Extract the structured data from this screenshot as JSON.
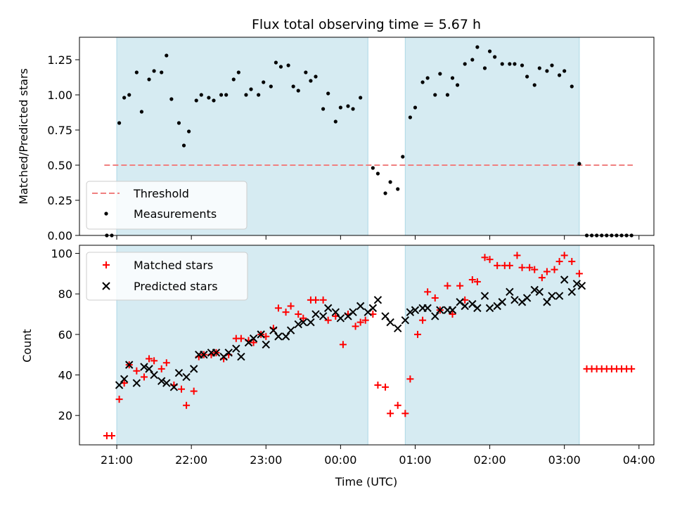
{
  "chart_data": [
    {
      "type": "scatter",
      "title": "Flux total observing time = 5.67 h",
      "ylabel": "Matched/Predicted stars",
      "xlabel": "",
      "ylim": [
        0,
        1.41
      ],
      "yticks": [
        "0.00",
        "0.25",
        "0.50",
        "0.75",
        "1.00",
        "1.25"
      ],
      "shaded_intervals": [
        [
          "21:00",
          "00:22"
        ],
        [
          "00:52",
          "03:12"
        ]
      ],
      "threshold": {
        "name": "Threshold",
        "value": 0.5,
        "x_range": [
          "20:50",
          "03:55"
        ],
        "color": "#f08080"
      },
      "legend": {
        "placement": "lower-left",
        "entries": [
          "Threshold",
          "Measurements"
        ]
      },
      "series": [
        {
          "name": "Measurements",
          "color": "#000000",
          "points": [
            [
              "20:52",
              0.0
            ],
            [
              "20:56",
              0.0
            ],
            [
              "21:02",
              0.8
            ],
            [
              "21:06",
              0.98
            ],
            [
              "21:10",
              1.0
            ],
            [
              "21:16",
              1.16
            ],
            [
              "21:20",
              0.88
            ],
            [
              "21:26",
              1.11
            ],
            [
              "21:30",
              1.17
            ],
            [
              "21:36",
              1.16
            ],
            [
              "21:40",
              1.28
            ],
            [
              "21:44",
              0.97
            ],
            [
              "21:50",
              0.8
            ],
            [
              "21:54",
              0.64
            ],
            [
              "21:58",
              0.74
            ],
            [
              "22:04",
              0.96
            ],
            [
              "22:08",
              1.0
            ],
            [
              "22:14",
              0.98
            ],
            [
              "22:18",
              0.96
            ],
            [
              "22:24",
              1.0
            ],
            [
              "22:28",
              1.0
            ],
            [
              "22:34",
              1.11
            ],
            [
              "22:38",
              1.16
            ],
            [
              "22:44",
              1.0
            ],
            [
              "22:48",
              1.04
            ],
            [
              "22:54",
              1.0
            ],
            [
              "22:58",
              1.09
            ],
            [
              "23:04",
              1.06
            ],
            [
              "23:08",
              1.23
            ],
            [
              "23:12",
              1.2
            ],
            [
              "23:18",
              1.21
            ],
            [
              "23:22",
              1.06
            ],
            [
              "23:26",
              1.03
            ],
            [
              "23:32",
              1.16
            ],
            [
              "23:36",
              1.1
            ],
            [
              "23:40",
              1.13
            ],
            [
              "23:46",
              0.9
            ],
            [
              "23:50",
              1.01
            ],
            [
              "23:56",
              0.81
            ],
            [
              "24:00",
              0.91
            ],
            [
              "24:06",
              0.92
            ],
            [
              "24:10",
              0.9
            ],
            [
              "24:16",
              0.98
            ],
            [
              "24:26",
              0.48
            ],
            [
              "24:30",
              0.44
            ],
            [
              "24:36",
              0.3
            ],
            [
              "24:40",
              0.38
            ],
            [
              "24:46",
              0.33
            ],
            [
              "24:50",
              0.56
            ],
            [
              "24:56",
              0.84
            ],
            [
              "25:00",
              0.91
            ],
            [
              "25:06",
              1.09
            ],
            [
              "25:10",
              1.12
            ],
            [
              "25:16",
              1.0
            ],
            [
              "25:20",
              1.15
            ],
            [
              "25:26",
              1.0
            ],
            [
              "25:30",
              1.12
            ],
            [
              "25:34",
              1.07
            ],
            [
              "25:40",
              1.22
            ],
            [
              "25:46",
              1.25
            ],
            [
              "25:50",
              1.34
            ],
            [
              "25:56",
              1.19
            ],
            [
              "26:00",
              1.31
            ],
            [
              "26:04",
              1.27
            ],
            [
              "26:10",
              1.22
            ],
            [
              "26:16",
              1.22
            ],
            [
              "26:20",
              1.22
            ],
            [
              "26:26",
              1.21
            ],
            [
              "26:30",
              1.13
            ],
            [
              "26:36",
              1.07
            ],
            [
              "26:40",
              1.19
            ],
            [
              "26:46",
              1.17
            ],
            [
              "26:50",
              1.21
            ],
            [
              "26:56",
              1.14
            ],
            [
              "27:00",
              1.17
            ],
            [
              "27:06",
              1.06
            ],
            [
              "27:12",
              0.51
            ],
            [
              "27:18",
              0.0
            ],
            [
              "27:22",
              0.0
            ],
            [
              "27:26",
              0.0
            ],
            [
              "27:30",
              0.0
            ],
            [
              "27:34",
              0.0
            ],
            [
              "27:38",
              0.0
            ],
            [
              "27:42",
              0.0
            ],
            [
              "27:46",
              0.0
            ],
            [
              "27:50",
              0.0
            ],
            [
              "27:54",
              0.0
            ]
          ]
        }
      ]
    },
    {
      "type": "scatter",
      "title": "",
      "xlabel": "Time (UTC)",
      "ylabel": "Count",
      "ylim": [
        5.5,
        104
      ],
      "yticks": [
        "20",
        "40",
        "60",
        "80",
        "100"
      ],
      "xlim": [
        "20:30",
        "04:12"
      ],
      "xticks": [
        "21:00",
        "22:00",
        "23:00",
        "00:00",
        "01:00",
        "02:00",
        "03:00",
        "04:00"
      ],
      "shaded_intervals": [
        [
          "21:00",
          "00:22"
        ],
        [
          "00:52",
          "03:12"
        ]
      ],
      "legend": {
        "placement": "upper-left",
        "entries": [
          "Matched stars",
          "Predicted stars"
        ]
      },
      "series": [
        {
          "name": "Matched stars",
          "color": "#ff0000",
          "marker": "+",
          "points": [
            [
              "20:52",
              10
            ],
            [
              "20:56",
              10
            ],
            [
              "21:02",
              28
            ],
            [
              "21:06",
              36
            ],
            [
              "21:10",
              45
            ],
            [
              "21:16",
              42
            ],
            [
              "21:22",
              39
            ],
            [
              "21:26",
              48
            ],
            [
              "21:30",
              47
            ],
            [
              "21:36",
              43
            ],
            [
              "21:40",
              46
            ],
            [
              "21:46",
              35
            ],
            [
              "21:52",
              33
            ],
            [
              "21:56",
              25
            ],
            [
              "22:02",
              32
            ],
            [
              "22:06",
              49
            ],
            [
              "22:10",
              50
            ],
            [
              "22:16",
              50
            ],
            [
              "22:20",
              51
            ],
            [
              "22:26",
              48
            ],
            [
              "22:30",
              50
            ],
            [
              "22:36",
              58
            ],
            [
              "22:40",
              58
            ],
            [
              "22:46",
              57
            ],
            [
              "22:50",
              56
            ],
            [
              "22:56",
              60
            ],
            [
              "23:00",
              59
            ],
            [
              "23:06",
              63
            ],
            [
              "23:10",
              73
            ],
            [
              "23:16",
              71
            ],
            [
              "23:20",
              74
            ],
            [
              "23:26",
              70
            ],
            [
              "23:30",
              68
            ],
            [
              "23:36",
              77
            ],
            [
              "23:40",
              77
            ],
            [
              "23:46",
              77
            ],
            [
              "23:50",
              67
            ],
            [
              "23:56",
              69
            ],
            [
              "24:02",
              55
            ],
            [
              "24:06",
              70
            ],
            [
              "24:12",
              64
            ],
            [
              "24:16",
              66
            ],
            [
              "24:20",
              67
            ],
            [
              "24:26",
              70
            ],
            [
              "24:30",
              35
            ],
            [
              "24:36",
              34
            ],
            [
              "24:40",
              21
            ],
            [
              "24:46",
              25
            ],
            [
              "24:52",
              21
            ],
            [
              "24:56",
              38
            ],
            [
              "25:02",
              60
            ],
            [
              "25:06",
              67
            ],
            [
              "25:10",
              81
            ],
            [
              "25:16",
              78
            ],
            [
              "25:20",
              72
            ],
            [
              "25:26",
              84
            ],
            [
              "25:30",
              70
            ],
            [
              "25:36",
              84
            ],
            [
              "25:40",
              77
            ],
            [
              "25:46",
              87
            ],
            [
              "25:50",
              86
            ],
            [
              "25:56",
              98
            ],
            [
              "26:00",
              97
            ],
            [
              "26:06",
              94
            ],
            [
              "26:12",
              94
            ],
            [
              "26:16",
              94
            ],
            [
              "26:22",
              99
            ],
            [
              "26:26",
              93
            ],
            [
              "26:32",
              93
            ],
            [
              "26:36",
              92
            ],
            [
              "26:42",
              88
            ],
            [
              "26:46",
              91
            ],
            [
              "26:52",
              92
            ],
            [
              "26:56",
              96
            ],
            [
              "27:00",
              99
            ],
            [
              "27:06",
              96
            ],
            [
              "27:12",
              90
            ],
            [
              "27:18",
              43
            ],
            [
              "27:22",
              43
            ],
            [
              "27:26",
              43
            ],
            [
              "27:30",
              43
            ],
            [
              "27:34",
              43
            ],
            [
              "27:38",
              43
            ],
            [
              "27:42",
              43
            ],
            [
              "27:46",
              43
            ],
            [
              "27:50",
              43
            ],
            [
              "27:54",
              43
            ]
          ]
        },
        {
          "name": "Predicted stars",
          "color": "#000000",
          "marker": "x",
          "points": [
            [
              "21:02",
              35
            ],
            [
              "21:06",
              38
            ],
            [
              "21:10",
              45
            ],
            [
              "21:16",
              36
            ],
            [
              "21:22",
              44
            ],
            [
              "21:26",
              43
            ],
            [
              "21:30",
              40
            ],
            [
              "21:36",
              37
            ],
            [
              "21:40",
              36
            ],
            [
              "21:46",
              34
            ],
            [
              "21:50",
              41
            ],
            [
              "21:56",
              39
            ],
            [
              "22:02",
              43
            ],
            [
              "22:06",
              50
            ],
            [
              "22:10",
              50
            ],
            [
              "22:16",
              51
            ],
            [
              "22:20",
              51
            ],
            [
              "22:26",
              49
            ],
            [
              "22:30",
              51
            ],
            [
              "22:36",
              53
            ],
            [
              "22:40",
              49
            ],
            [
              "22:46",
              56
            ],
            [
              "22:50",
              58
            ],
            [
              "22:56",
              60
            ],
            [
              "23:00",
              55
            ],
            [
              "23:06",
              62
            ],
            [
              "23:10",
              59
            ],
            [
              "23:16",
              59
            ],
            [
              "23:20",
              62
            ],
            [
              "23:26",
              65
            ],
            [
              "23:30",
              66
            ],
            [
              "23:36",
              66
            ],
            [
              "23:40",
              70
            ],
            [
              "23:46",
              69
            ],
            [
              "23:50",
              73
            ],
            [
              "23:56",
              71
            ],
            [
              "24:00",
              68
            ],
            [
              "24:06",
              69
            ],
            [
              "24:10",
              71
            ],
            [
              "24:16",
              74
            ],
            [
              "24:22",
              71
            ],
            [
              "24:26",
              73
            ],
            [
              "24:30",
              77
            ],
            [
              "24:36",
              69
            ],
            [
              "24:40",
              66
            ],
            [
              "24:46",
              63
            ],
            [
              "24:52",
              67
            ],
            [
              "24:56",
              71
            ],
            [
              "25:00",
              72
            ],
            [
              "25:06",
              73
            ],
            [
              "25:10",
              73
            ],
            [
              "25:16",
              69
            ],
            [
              "25:20",
              72
            ],
            [
              "25:26",
              72
            ],
            [
              "25:30",
              72
            ],
            [
              "25:36",
              76
            ],
            [
              "25:40",
              74
            ],
            [
              "25:46",
              75
            ],
            [
              "25:50",
              73
            ],
            [
              "25:56",
              79
            ],
            [
              "26:00",
              73
            ],
            [
              "26:06",
              74
            ],
            [
              "26:10",
              76
            ],
            [
              "26:16",
              81
            ],
            [
              "26:20",
              77
            ],
            [
              "26:26",
              76
            ],
            [
              "26:30",
              78
            ],
            [
              "26:36",
              82
            ],
            [
              "26:40",
              81
            ],
            [
              "26:46",
              76
            ],
            [
              "26:50",
              79
            ],
            [
              "26:56",
              79
            ],
            [
              "27:00",
              87
            ],
            [
              "27:06",
              81
            ],
            [
              "27:10",
              85
            ],
            [
              "27:14",
              84
            ]
          ]
        }
      ]
    }
  ]
}
